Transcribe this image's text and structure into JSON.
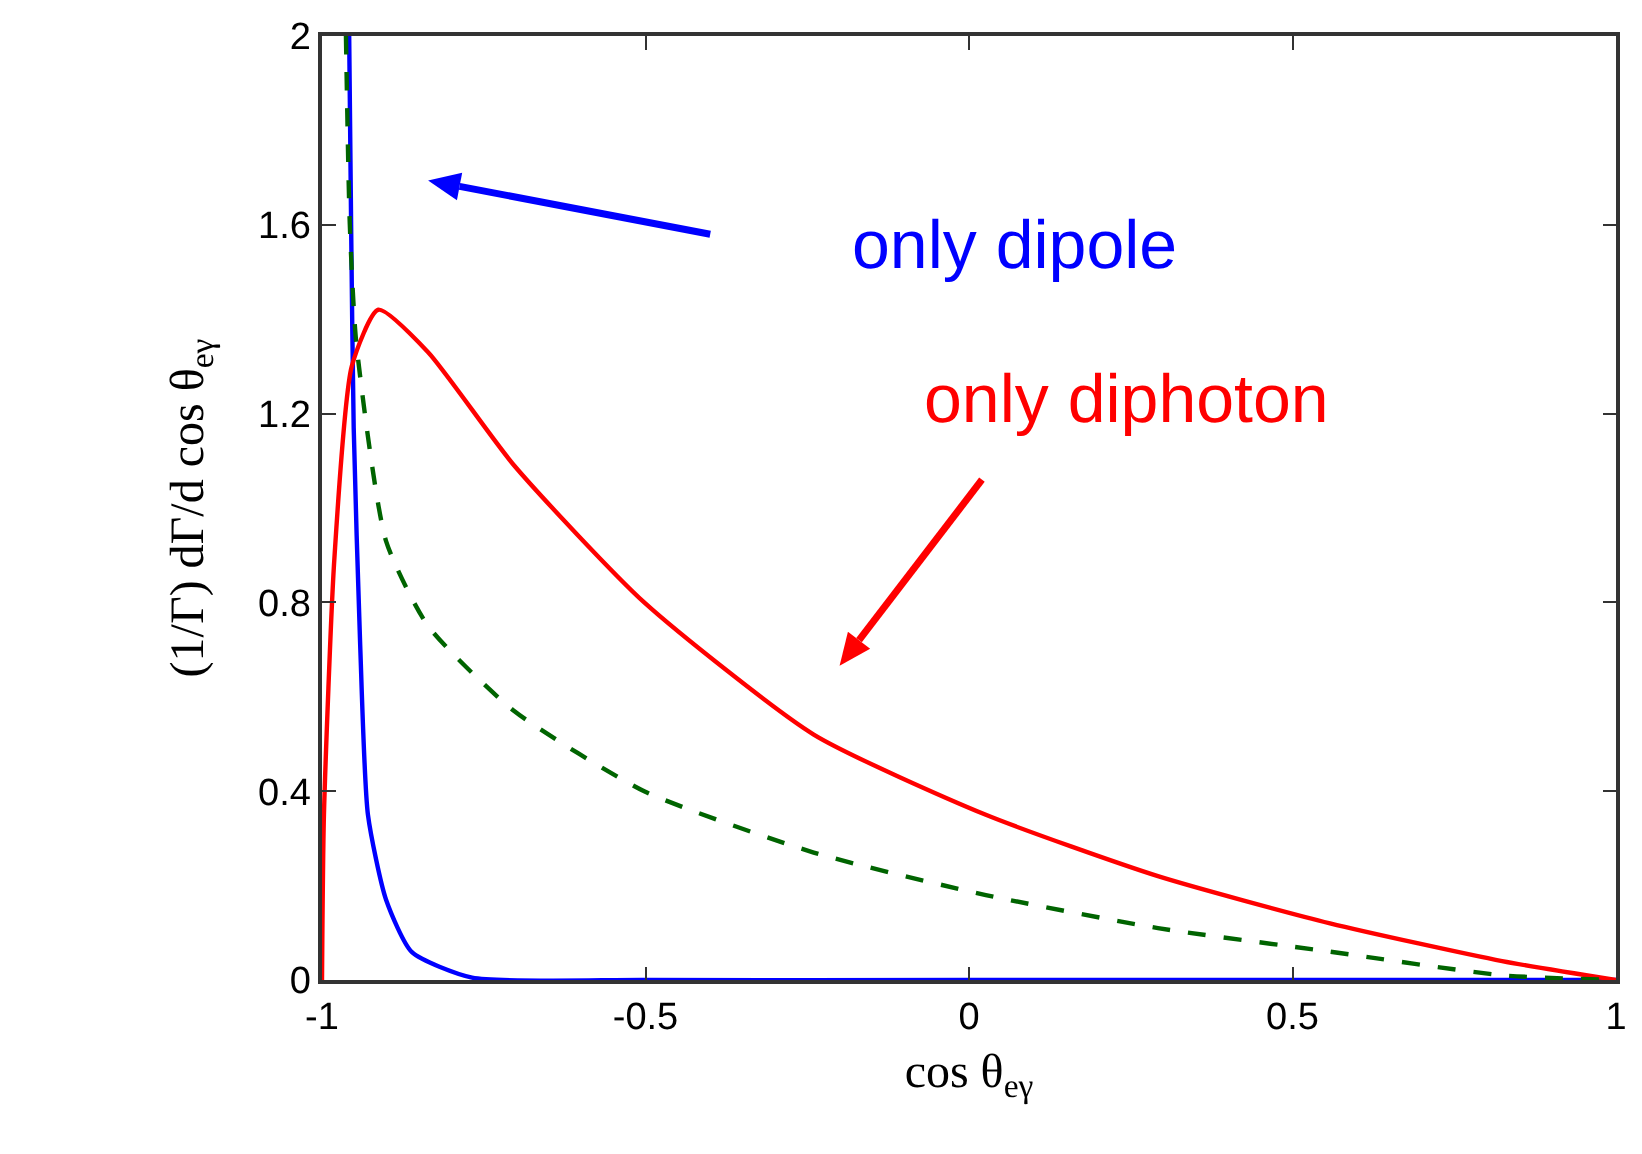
{
  "chart_data": {
    "type": "line",
    "xlabel": "cos θ$_{eγ}$",
    "ylabel": "(1/Γ) dΓ/d cos θ$_{eγ}$",
    "xlim": [
      -1,
      1
    ],
    "xticks": [
      -1,
      -0.5,
      0,
      0.5,
      1
    ],
    "ylim": [
      0,
      2
    ],
    "yticks": [
      0,
      0.4,
      0.8,
      1.2,
      1.6,
      2
    ],
    "grid": false,
    "series": [
      {
        "color": "#0000ff",
        "x": [
          -0.958,
          -0.955,
          -0.951,
          -0.941,
          -0.929,
          -0.901,
          -0.861,
          -0.768,
          -0.5,
          0,
          0.5,
          1
        ],
        "values": [
          2.0,
          1.6,
          1.17,
          0.71,
          0.35,
          0.17,
          0.059,
          0.005,
          0,
          0,
          0,
          0
        ]
      },
      {
        "color": "#ff0000",
        "x": [
          -1,
          -0.997,
          -0.981,
          -0.954,
          -0.913,
          -0.836,
          -0.703,
          -0.502,
          -0.24,
          0.026,
          0.292,
          0.558,
          0.824,
          1
        ],
        "values": [
          0,
          0.35,
          0.89,
          1.3,
          1.42,
          1.33,
          1.09,
          0.8,
          0.52,
          0.35,
          0.22,
          0.12,
          0.04,
          0
        ]
      },
      {
        "color": "#006400",
        "line_style": "dashed",
        "x": [
          -0.963,
          -0.957,
          -0.947,
          -0.901,
          -0.836,
          -0.703,
          -0.502,
          -0.24,
          0.026,
          0.292,
          0.558,
          0.824,
          1
        ],
        "values": [
          2.0,
          1.6,
          1.35,
          0.93,
          0.75,
          0.57,
          0.4,
          0.27,
          0.18,
          0.11,
          0.06,
          0.01,
          0
        ]
      }
    ],
    "annotations": [
      "only dipole",
      "only diphoton"
    ]
  }
}
